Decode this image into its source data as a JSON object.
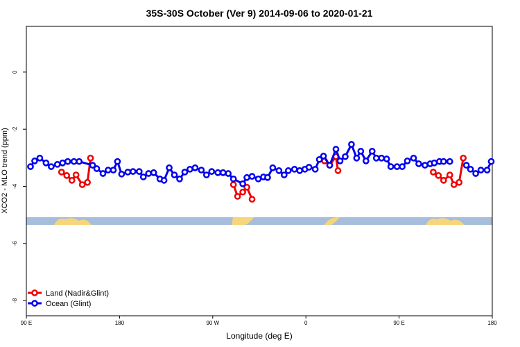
{
  "chart_data": {
    "type": "line",
    "title": "35S-30S October (Ver 9)   2014-09-06 to 2020-01-21",
    "xlabel": "Longitude (deg E)",
    "ylabel": "XCO2 - MLO trend (ppm)",
    "xlim": [
      90,
      540
    ],
    "ylim": [
      -8.53,
      1.6
    ],
    "xticks": [
      {
        "value": 90,
        "label": "90 E"
      },
      {
        "value": 180,
        "label": "180"
      },
      {
        "value": 270,
        "label": "90 W"
      },
      {
        "value": 360,
        "label": "0"
      },
      {
        "value": 450,
        "label": "90 E"
      },
      {
        "value": 540,
        "label": "180"
      }
    ],
    "yticks": [
      0,
      -2,
      -4,
      -6,
      -8
    ],
    "legend": "bottom-left",
    "series": [
      {
        "name": "Land (Nadir&Glint)",
        "color": "#ee0000",
        "x": [
          124,
          129,
          134,
          138,
          144,
          149,
          152,
          null,
          290,
          294,
          299,
          303,
          308,
          null,
          378,
          383,
          389,
          391,
          null,
          483,
          488,
          493,
          499,
          503,
          508,
          512
        ],
        "values": [
          -3.5,
          -3.62,
          -3.79,
          -3.6,
          -3.94,
          -3.86,
          -3.01,
          null,
          -3.94,
          -4.35,
          -4.2,
          -4.03,
          -4.45,
          null,
          -3.11,
          -3.26,
          -2.96,
          -3.45,
          null,
          -3.5,
          -3.62,
          -3.79,
          -3.6,
          -3.94,
          -3.86,
          -3.01
        ]
      },
      {
        "name": "Ocean (Glint)",
        "color": "#0000ee",
        "x": [
          94,
          98,
          103,
          109,
          114,
          120,
          125,
          130,
          136,
          141,
          154,
          158,
          164,
          169,
          174,
          178,
          182,
          188,
          193,
          199,
          203,
          208,
          213,
          219,
          223,
          228,
          233,
          238,
          243,
          248,
          253,
          259,
          264,
          269,
          275,
          280,
          285,
          290,
          299,
          303,
          308,
          314,
          319,
          323,
          328,
          334,
          339,
          343,
          349,
          354,
          359,
          363,
          369,
          373,
          377,
          383,
          389,
          393,
          398,
          404,
          409,
          413,
          418,
          424,
          428,
          433,
          438,
          442,
          448,
          453,
          458,
          464,
          469,
          475,
          480,
          484,
          489,
          493,
          499,
          null,
          515,
          519,
          524,
          529,
          535,
          539
        ],
        "values": [
          -3.31,
          -3.11,
          -3.01,
          -3.18,
          -3.31,
          -3.23,
          -3.18,
          -3.13,
          -3.13,
          -3.13,
          -3.26,
          -3.38,
          -3.55,
          -3.43,
          -3.43,
          -3.13,
          -3.57,
          -3.5,
          -3.48,
          -3.48,
          -3.67,
          -3.55,
          -3.52,
          -3.74,
          -3.79,
          -3.35,
          -3.6,
          -3.74,
          -3.5,
          -3.4,
          -3.35,
          -3.43,
          -3.6,
          -3.48,
          -3.52,
          -3.52,
          -3.55,
          -3.74,
          -3.91,
          -3.69,
          -3.65,
          -3.74,
          -3.67,
          -3.69,
          -3.35,
          -3.45,
          -3.6,
          -3.45,
          -3.4,
          -3.45,
          -3.4,
          -3.33,
          -3.4,
          -3.06,
          -2.94,
          -3.26,
          -2.7,
          -3.11,
          -2.96,
          -2.53,
          -3.01,
          -2.77,
          -3.11,
          -2.77,
          -3.01,
          -3.01,
          -3.04,
          -3.31,
          -3.31,
          -3.31,
          -3.11,
          -3.01,
          -3.21,
          -3.26,
          -3.21,
          -3.18,
          -3.13,
          -3.13,
          -3.13,
          null,
          -3.26,
          -3.4,
          -3.55,
          -3.43,
          -3.43,
          -3.13
        ]
      }
    ]
  }
}
